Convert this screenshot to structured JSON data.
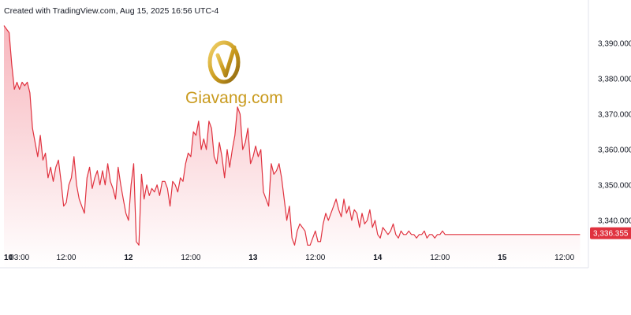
{
  "header": {
    "text": "Created with TradingView.com, Aug 15, 2025 16:56 UTC-4"
  },
  "watermark": {
    "brand": "Giavang.com",
    "color": "#c99a1d"
  },
  "colors": {
    "line": "#e0323f",
    "fill_top": "#f7b6bd",
    "fill_bottom": "#ffffff",
    "last_price_bg": "#e0323f"
  },
  "chart_data": {
    "type": "area",
    "title": "",
    "xlabel": "",
    "ylabel": "",
    "y_ticks": [
      "3,390.000",
      "3,380.000",
      "3,370.000",
      "3,360.000",
      "3,350.000",
      "3,340.000"
    ],
    "y_tick_values": [
      3390,
      3380,
      3370,
      3360,
      3350,
      3340
    ],
    "ylim": [
      3331.5,
      3396
    ],
    "x_ticks": [
      {
        "label": "10",
        "bold": true,
        "t": 0
      },
      {
        "label": "03:00",
        "bold": false,
        "t": 3
      },
      {
        "label": "12:00",
        "bold": false,
        "t": 12
      },
      {
        "label": "12",
        "bold": true,
        "t": 24
      },
      {
        "label": "12:00",
        "bold": false,
        "t": 36
      },
      {
        "label": "13",
        "bold": true,
        "t": 48
      },
      {
        "label": "12:00",
        "bold": false,
        "t": 60
      },
      {
        "label": "14",
        "bold": true,
        "t": 72
      },
      {
        "label": "12:00",
        "bold": false,
        "t": 84
      },
      {
        "label": "15",
        "bold": true,
        "t": 96
      },
      {
        "label": "12:00",
        "bold": false,
        "t": 108
      }
    ],
    "xlim": [
      0,
      112
    ],
    "last_price": 3336.355,
    "last_price_label": "3,336.355",
    "series": [
      {
        "t": [
          0,
          0.5,
          1,
          1.5,
          2,
          2.5,
          3,
          3.5,
          4,
          4.5,
          5,
          5.5,
          6,
          6.5,
          7,
          7.5,
          8,
          8.5,
          9,
          9.5,
          10,
          10.5,
          11,
          11.5,
          12,
          12.5,
          13,
          13.5,
          14,
          14.5,
          15,
          15.5,
          16,
          16.5,
          17,
          17.5,
          18,
          18.5,
          19,
          19.5,
          20,
          20.5,
          21,
          21.5,
          22,
          22.5,
          23,
          23.5,
          24,
          24.5,
          25,
          25.5,
          26,
          26.5,
          27,
          27.5,
          28,
          28.5,
          29,
          29.5,
          30,
          30.5,
          31,
          31.5,
          32,
          32.5,
          33,
          33.5,
          34,
          34.5,
          35,
          35.5,
          36,
          36.5,
          37,
          37.5,
          38,
          38.5,
          39,
          39.5,
          40,
          40.5,
          41,
          41.5,
          42,
          42.5,
          43,
          43.5,
          44,
          44.5,
          45,
          45.5,
          46,
          46.5,
          47,
          47.5,
          48,
          48.5,
          49,
          49.5,
          50,
          50.5,
          51,
          51.5,
          52,
          52.5,
          53,
          53.5,
          54,
          54.5,
          55,
          55.5,
          56,
          56.5,
          57,
          57.5,
          58,
          58.5,
          59,
          59.5,
          60,
          60.5,
          61,
          61.5,
          62,
          62.5,
          63,
          63.5,
          64,
          64.5,
          65,
          65.5,
          66,
          66.5,
          67,
          67.5,
          68,
          68.5,
          69,
          69.5,
          70,
          70.5,
          71,
          71.5,
          72,
          72.5,
          73,
          73.5,
          74,
          74.5,
          75,
          75.5,
          76,
          76.5,
          77,
          77.5,
          78,
          78.5,
          79,
          79.5,
          80,
          80.5,
          81,
          81.5,
          82,
          82.5,
          83,
          83.5,
          84,
          84.5,
          85,
          85.5,
          86,
          86.5,
          87,
          87.5,
          88,
          88.5,
          89,
          89.5,
          90,
          90.5,
          91,
          91.5,
          92,
          92.5,
          93,
          93.5,
          94,
          94.5,
          95,
          95.5,
          96,
          96.5,
          97,
          97.5,
          98,
          98.5,
          99,
          99.5,
          100,
          100.5,
          101,
          101.5,
          102,
          102.5,
          103,
          103.5,
          104,
          104.5,
          105,
          105.5,
          106,
          106.5,
          107,
          107.5,
          108,
          108.5,
          109,
          109.5,
          110,
          110.5,
          111
        ],
        "values": [
          3395,
          3394,
          3393,
          3384,
          3377,
          3379,
          3377,
          3379,
          3378,
          3379,
          3376,
          3366,
          3362,
          3358,
          3364,
          3357,
          3359,
          3352,
          3355,
          3351,
          3355,
          3357,
          3351,
          3344,
          3345,
          3350,
          3352,
          3358,
          3350,
          3346,
          3344,
          3342,
          3352,
          3355,
          3349,
          3352,
          3354,
          3350,
          3354,
          3350,
          3356,
          3351,
          3349,
          3346,
          3355,
          3350,
          3346,
          3342,
          3340,
          3350,
          3356,
          3334,
          3333,
          3353,
          3346,
          3350,
          3347,
          3349,
          3348,
          3350,
          3347,
          3351,
          3351,
          3349,
          3344,
          3351,
          3350,
          3348,
          3352,
          3351,
          3356,
          3359,
          3358,
          3365,
          3364,
          3368,
          3360,
          3363,
          3360,
          3368,
          3366,
          3358,
          3356,
          3362,
          3358,
          3352,
          3360,
          3355,
          3360,
          3364,
          3372,
          3370,
          3360,
          3362,
          3366,
          3356,
          3358,
          3361,
          3358,
          3360,
          3348,
          3346,
          3344,
          3356,
          3353,
          3354,
          3356,
          3352,
          3346,
          3340,
          3344,
          3335,
          3333,
          3337,
          3339,
          3338,
          3337,
          3333,
          3333,
          3335,
          3337,
          3334,
          3334,
          3339,
          3342,
          3340,
          3342,
          3344,
          3346,
          3343,
          3341,
          3346,
          3342,
          3344,
          3340,
          3343,
          3342,
          3338,
          3342,
          3339,
          3340,
          3343,
          3338,
          3340,
          3336,
          3335,
          3338,
          3337,
          3336,
          3337,
          3339,
          3336,
          3335,
          3337,
          3336,
          3336,
          3337,
          3336,
          3336,
          3335,
          3336,
          3336,
          3337,
          3335,
          3336,
          3336,
          3335,
          3336,
          3336,
          3337,
          3336,
          3336,
          3336,
          3336,
          3336,
          3336,
          3336,
          3336,
          3336,
          3336,
          3336,
          3336,
          3336,
          3336,
          3336,
          3336,
          3336,
          3336,
          3336,
          3336,
          3336,
          3336,
          3336,
          3336,
          3336,
          3336,
          3336,
          3336,
          3336,
          3336,
          3336,
          3336,
          3336,
          3336,
          3336,
          3336,
          3336,
          3336,
          3336,
          3336,
          3336,
          3336,
          3336,
          3336,
          3336,
          3336,
          3336,
          3336,
          3336,
          3336,
          3336,
          3336,
          3336
        ]
      }
    ]
  }
}
